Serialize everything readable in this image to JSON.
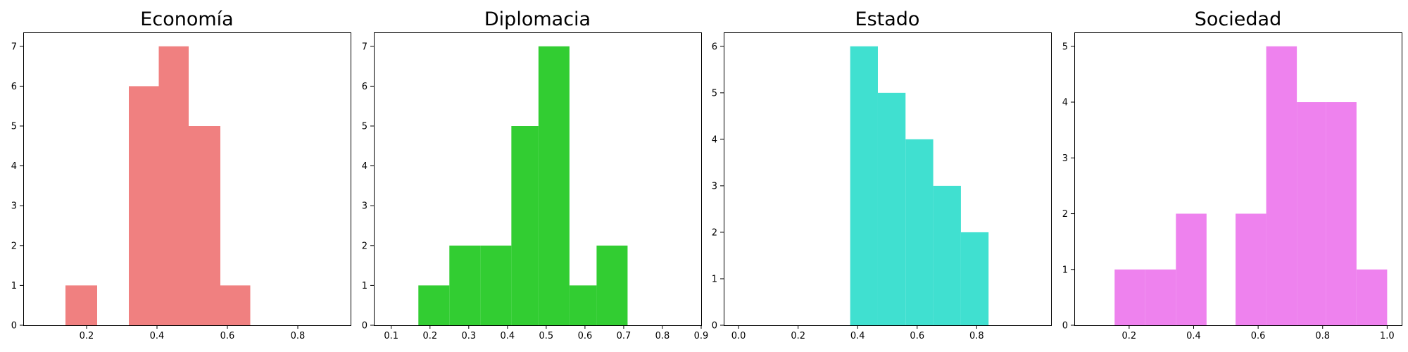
{
  "chart_data": [
    {
      "type": "bar",
      "title": "Economía",
      "color": "#f08080",
      "xlim": [
        0.02,
        0.95
      ],
      "ylim": [
        0,
        7.35
      ],
      "xticks": [
        0.2,
        0.4,
        0.6,
        0.8
      ],
      "xtick_labels": [
        "0.2",
        "0.4",
        "0.6",
        "0.8"
      ],
      "yticks": [
        0,
        1,
        2,
        3,
        4,
        5,
        6,
        7
      ],
      "ytick_labels": [
        "0",
        "1",
        "2",
        "3",
        "4",
        "5",
        "6",
        "7"
      ],
      "bins": [
        {
          "x0": 0.14,
          "x1": 0.23,
          "value": 1
        },
        {
          "x0": 0.23,
          "x1": 0.32,
          "value": 0
        },
        {
          "x0": 0.32,
          "x1": 0.405,
          "value": 6
        },
        {
          "x0": 0.405,
          "x1": 0.49,
          "value": 7
        },
        {
          "x0": 0.49,
          "x1": 0.58,
          "value": 5
        },
        {
          "x0": 0.58,
          "x1": 0.665,
          "value": 1
        }
      ]
    },
    {
      "type": "bar",
      "title": "Diplomacia",
      "color": "#32cd32",
      "xlim": [
        0.055,
        0.9
      ],
      "ylim": [
        0,
        7.35
      ],
      "xticks": [
        0.1,
        0.2,
        0.3,
        0.4,
        0.5,
        0.6,
        0.7,
        0.8,
        0.9
      ],
      "xtick_labels": [
        "0.1",
        "0.2",
        "0.3",
        "0.4",
        "0.5",
        "0.6",
        "0.7",
        "0.8",
        "0.9"
      ],
      "yticks": [
        0,
        1,
        2,
        3,
        4,
        5,
        6,
        7
      ],
      "ytick_labels": [
        "0",
        "1",
        "2",
        "3",
        "4",
        "5",
        "6",
        "7"
      ],
      "bins": [
        {
          "x0": 0.17,
          "x1": 0.25,
          "value": 1
        },
        {
          "x0": 0.25,
          "x1": 0.33,
          "value": 2
        },
        {
          "x0": 0.33,
          "x1": 0.41,
          "value": 2
        },
        {
          "x0": 0.41,
          "x1": 0.48,
          "value": 5
        },
        {
          "x0": 0.48,
          "x1": 0.56,
          "value": 7
        },
        {
          "x0": 0.56,
          "x1": 0.63,
          "value": 1
        },
        {
          "x0": 0.63,
          "x1": 0.71,
          "value": 2
        }
      ]
    },
    {
      "type": "bar",
      "title": "Estado",
      "color": "#40e0d0",
      "xlim": [
        -0.05,
        1.05
      ],
      "ylim": [
        0,
        6.3
      ],
      "xticks": [
        0.0,
        0.2,
        0.4,
        0.6,
        0.8
      ],
      "xtick_labels": [
        "0.0",
        "0.2",
        "0.4",
        "0.6",
        "0.8"
      ],
      "yticks": [
        0,
        1,
        2,
        3,
        4,
        5,
        6
      ],
      "ytick_labels": [
        "0",
        "1",
        "2",
        "3",
        "4",
        "5",
        "6"
      ],
      "bins": [
        {
          "x0": 0.375,
          "x1": 0.468,
          "value": 6
        },
        {
          "x0": 0.468,
          "x1": 0.561,
          "value": 5
        },
        {
          "x0": 0.561,
          "x1": 0.654,
          "value": 4
        },
        {
          "x0": 0.654,
          "x1": 0.747,
          "value": 3
        },
        {
          "x0": 0.747,
          "x1": 0.84,
          "value": 2
        }
      ]
    },
    {
      "type": "bar",
      "title": "Sociedad",
      "color": "#ee82ee",
      "xlim": [
        0.03,
        1.045
      ],
      "ylim": [
        0,
        5.25
      ],
      "xticks": [
        0.2,
        0.4,
        0.6,
        0.8,
        1.0
      ],
      "xtick_labels": [
        "0.2",
        "0.4",
        "0.6",
        "0.8",
        "1.0"
      ],
      "yticks": [
        0,
        1,
        2,
        3,
        4,
        5
      ],
      "ytick_labels": [
        "0",
        "1",
        "2",
        "3",
        "4",
        "5"
      ],
      "bins": [
        {
          "x0": 0.155,
          "x1": 0.25,
          "value": 1
        },
        {
          "x0": 0.25,
          "x1": 0.345,
          "value": 1
        },
        {
          "x0": 0.345,
          "x1": 0.44,
          "value": 2
        },
        {
          "x0": 0.44,
          "x1": 0.53,
          "value": 0
        },
        {
          "x0": 0.53,
          "x1": 0.625,
          "value": 2
        },
        {
          "x0": 0.625,
          "x1": 0.72,
          "value": 5
        },
        {
          "x0": 0.72,
          "x1": 0.81,
          "value": 4
        },
        {
          "x0": 0.81,
          "x1": 0.905,
          "value": 4
        },
        {
          "x0": 0.905,
          "x1": 1.0,
          "value": 1
        }
      ]
    }
  ]
}
